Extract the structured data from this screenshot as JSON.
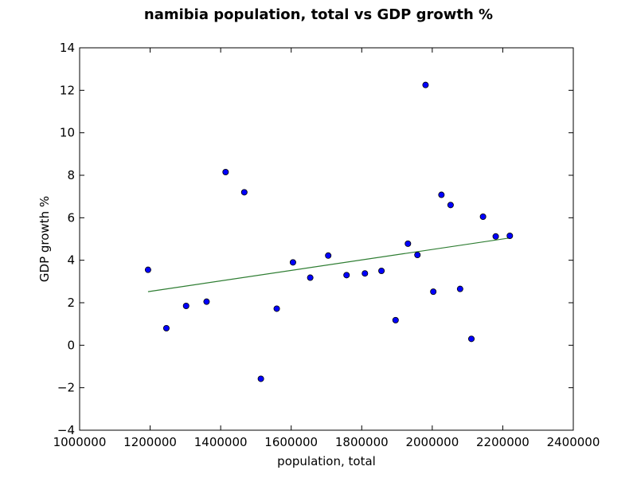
{
  "chart_data": {
    "type": "scatter",
    "title": "namibia population, total vs GDP growth %",
    "xlabel": "population, total",
    "ylabel": "GDP growth %",
    "xlim": [
      1000000,
      2400000
    ],
    "ylim": [
      -4,
      14
    ],
    "xticks": [
      1000000,
      1200000,
      1400000,
      1600000,
      1800000,
      2000000,
      2200000,
      2400000
    ],
    "yticks": [
      -4,
      -2,
      0,
      2,
      4,
      6,
      8,
      10,
      12,
      14
    ],
    "grid": false,
    "marker_color": "#0000ff",
    "trend_color": "#2e7d32",
    "points": [
      {
        "x": 1194000,
        "y": 3.55
      },
      {
        "x": 1246000,
        "y": 0.8
      },
      {
        "x": 1302000,
        "y": 1.85
      },
      {
        "x": 1360000,
        "y": 2.05
      },
      {
        "x": 1414000,
        "y": 8.15
      },
      {
        "x": 1467000,
        "y": 7.2
      },
      {
        "x": 1514000,
        "y": -1.58
      },
      {
        "x": 1559000,
        "y": 1.72
      },
      {
        "x": 1605000,
        "y": 3.9
      },
      {
        "x": 1654000,
        "y": 3.18
      },
      {
        "x": 1705000,
        "y": 4.22
      },
      {
        "x": 1757000,
        "y": 3.3
      },
      {
        "x": 1809000,
        "y": 3.38
      },
      {
        "x": 1856000,
        "y": 3.5
      },
      {
        "x": 1896000,
        "y": 1.18
      },
      {
        "x": 1931000,
        "y": 4.78
      },
      {
        "x": 1958000,
        "y": 4.25
      },
      {
        "x": 1981000,
        "y": 12.25
      },
      {
        "x": 2003000,
        "y": 2.52
      },
      {
        "x": 2026000,
        "y": 7.08
      },
      {
        "x": 2052000,
        "y": 6.6
      },
      {
        "x": 2079000,
        "y": 2.65
      },
      {
        "x": 2111000,
        "y": 0.3
      },
      {
        "x": 2144000,
        "y": 6.05
      },
      {
        "x": 2180000,
        "y": 5.12
      },
      {
        "x": 2220000,
        "y": 5.15
      }
    ],
    "trend_line": {
      "x": [
        1194000,
        2220000
      ],
      "y": [
        2.52,
        5.05
      ]
    }
  }
}
